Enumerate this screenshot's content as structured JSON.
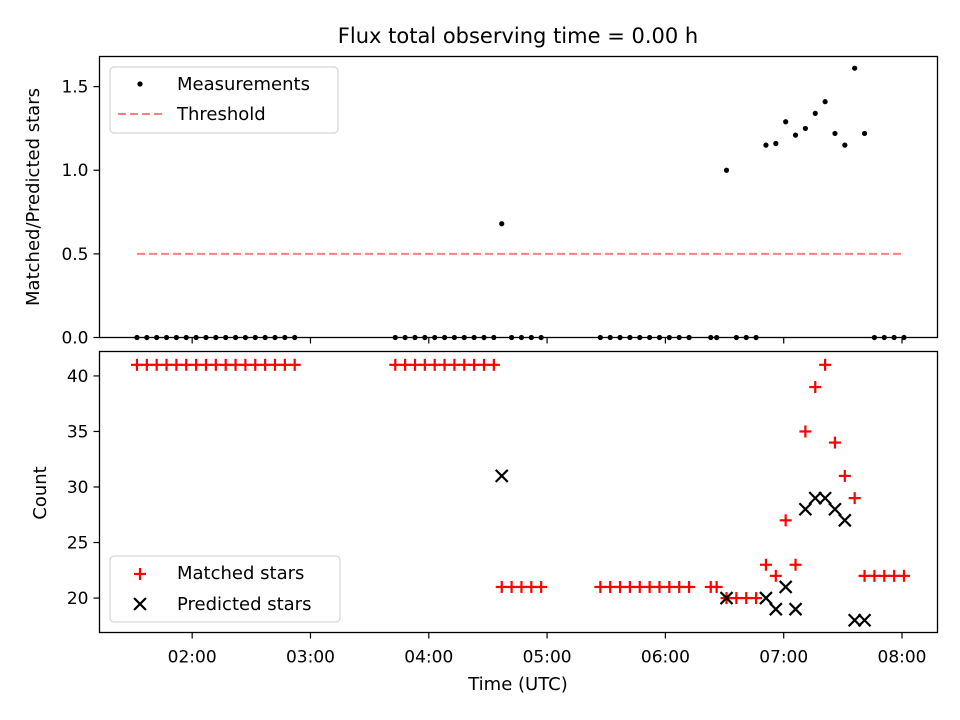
{
  "chart_data": [
    {
      "type": "scatter",
      "title": "Flux total observing time = 0.00 h",
      "xlabel": "",
      "ylabel": "Matched/Predicted stars",
      "ylim": [
        0,
        1.68
      ],
      "yticks": [
        "0.0",
        "0.5",
        "1.0",
        "1.5"
      ],
      "yticks_values": [
        0,
        0.5,
        1.0,
        1.5
      ],
      "xlim": [
        "01:13",
        "08:18"
      ],
      "legend": "top-left",
      "series": [
        {
          "name": "Measurements",
          "marker": "dot",
          "color": "#000000",
          "x": [
            "01:32",
            "01:37",
            "01:42",
            "01:47",
            "01:52",
            "01:57",
            "02:02",
            "02:07",
            "02:12",
            "02:17",
            "02:22",
            "02:27",
            "02:32",
            "02:37",
            "02:42",
            "02:47",
            "02:52",
            "03:43",
            "03:48",
            "03:53",
            "03:58",
            "04:03",
            "04:08",
            "04:13",
            "04:18",
            "04:23",
            "04:28",
            "04:33",
            "04:37",
            "04:42",
            "04:47",
            "04:52",
            "04:57",
            "05:27",
            "05:32",
            "05:37",
            "05:42",
            "05:47",
            "05:52",
            "05:57",
            "06:02",
            "06:07",
            "06:12",
            "06:23",
            "06:26",
            "06:31",
            "06:36",
            "06:41",
            "06:46",
            "06:51",
            "06:56",
            "07:01",
            "07:06",
            "07:11",
            "07:16",
            "07:21",
            "07:26",
            "07:31",
            "07:36",
            "07:41",
            "07:46",
            "07:51",
            "07:56",
            "08:01"
          ],
          "y": [
            0,
            0,
            0,
            0,
            0,
            0,
            0,
            0,
            0,
            0,
            0,
            0,
            0,
            0,
            0,
            0,
            0,
            0,
            0,
            0,
            0,
            0,
            0,
            0,
            0,
            0,
            0,
            0,
            0.68,
            0,
            0,
            0,
            0,
            0,
            0,
            0,
            0,
            0,
            0,
            0,
            0,
            0,
            0,
            0,
            0,
            1.0,
            0,
            0,
            0,
            1.15,
            1.16,
            1.29,
            1.21,
            1.25,
            1.34,
            1.41,
            1.22,
            1.15,
            1.61,
            1.22,
            0,
            0,
            0,
            0
          ]
        },
        {
          "name": "Threshold",
          "style": "dashed",
          "color": "#ff7f7f",
          "x": [
            "01:32",
            "08:00"
          ],
          "y": [
            0.5,
            0.5
          ]
        }
      ]
    },
    {
      "type": "scatter",
      "title": "",
      "xlabel": "Time (UTC)",
      "ylabel": "Count",
      "ylim": [
        16.9,
        42.2
      ],
      "yticks": [
        "20",
        "25",
        "30",
        "35",
        "40"
      ],
      "yticks_values": [
        20,
        25,
        30,
        35,
        40
      ],
      "xlim": [
        "01:13",
        "08:18"
      ],
      "xticks": [
        "02:00",
        "03:00",
        "04:00",
        "05:00",
        "06:00",
        "07:00",
        "08:00"
      ],
      "xticks_minutes": [
        120,
        180,
        240,
        300,
        360,
        420,
        480
      ],
      "legend": "bottom-left",
      "series": [
        {
          "name": "Matched stars",
          "marker": "plus",
          "color": "#ff0000",
          "x": [
            "01:32",
            "01:37",
            "01:42",
            "01:47",
            "01:52",
            "01:57",
            "02:02",
            "02:07",
            "02:12",
            "02:17",
            "02:22",
            "02:27",
            "02:32",
            "02:37",
            "02:42",
            "02:47",
            "02:52",
            "03:43",
            "03:48",
            "03:53",
            "03:58",
            "04:03",
            "04:08",
            "04:13",
            "04:18",
            "04:23",
            "04:28",
            "04:33",
            "04:37",
            "04:42",
            "04:47",
            "04:52",
            "04:57",
            "05:27",
            "05:32",
            "05:37",
            "05:42",
            "05:47",
            "05:52",
            "05:57",
            "06:02",
            "06:07",
            "06:12",
            "06:23",
            "06:26",
            "06:31",
            "06:36",
            "06:41",
            "06:46",
            "06:51",
            "06:56",
            "07:01",
            "07:06",
            "07:11",
            "07:16",
            "07:21",
            "07:26",
            "07:31",
            "07:36",
            "07:41",
            "07:46",
            "07:51",
            "07:56",
            "08:01"
          ],
          "y": [
            41,
            41,
            41,
            41,
            41,
            41,
            41,
            41,
            41,
            41,
            41,
            41,
            41,
            41,
            41,
            41,
            41,
            41,
            41,
            41,
            41,
            41,
            41,
            41,
            41,
            41,
            41,
            41,
            21,
            21,
            21,
            21,
            21,
            21,
            21,
            21,
            21,
            21,
            21,
            21,
            21,
            21,
            21,
            21,
            21,
            20,
            20,
            20,
            20,
            23,
            22,
            27,
            23,
            35,
            39,
            41,
            34,
            31,
            29,
            22,
            22,
            22,
            22,
            22
          ]
        },
        {
          "name": "Predicted stars",
          "marker": "x",
          "color": "#000000",
          "x": [
            "04:37",
            "06:31",
            "06:51",
            "06:56",
            "07:01",
            "07:06",
            "07:11",
            "07:16",
            "07:21",
            "07:26",
            "07:31",
            "07:36",
            "07:41"
          ],
          "y": [
            31,
            20,
            20,
            19,
            21,
            19,
            28,
            29,
            29,
            28,
            27,
            18,
            18
          ]
        }
      ]
    }
  ]
}
